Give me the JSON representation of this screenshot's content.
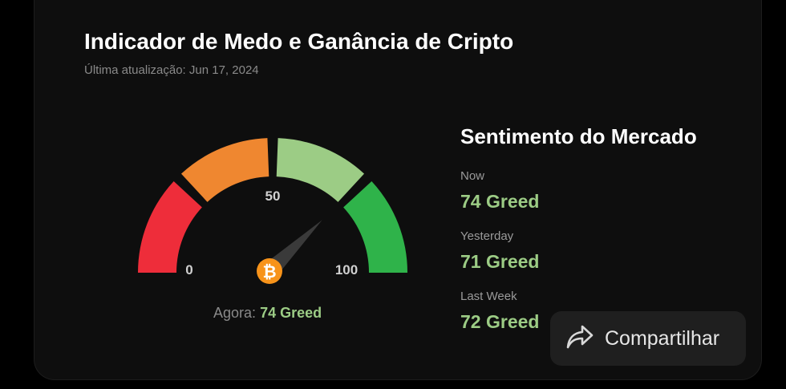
{
  "header": {
    "title": "Indicador de Medo e Ganância de Cripto",
    "updated": "Última atualização: Jun 17, 2024"
  },
  "gauge": {
    "value": 74,
    "min": 0,
    "max": 100,
    "ticks": {
      "min": "0",
      "mid": "50",
      "max": "100"
    },
    "segment_colors": [
      "#ee2d3a",
      "#ef8730",
      "#9ccc85",
      "#2fb34a"
    ],
    "center_icon": "bitcoin-icon",
    "now_label": "Agora:",
    "now_value": "74 Greed"
  },
  "sentiment": {
    "title": "Sentimento do Mercado",
    "items": [
      {
        "label": "Now",
        "value": "74 Greed"
      },
      {
        "label": "Yesterday",
        "value": "71 Greed"
      },
      {
        "label": "Last Week",
        "value": "72 Greed"
      }
    ]
  },
  "share": {
    "label": "Compartilhar",
    "icon": "share-arrow-icon"
  },
  "colors": {
    "accent_greed": "#9ccc85",
    "bitcoin": "#f7931a"
  }
}
